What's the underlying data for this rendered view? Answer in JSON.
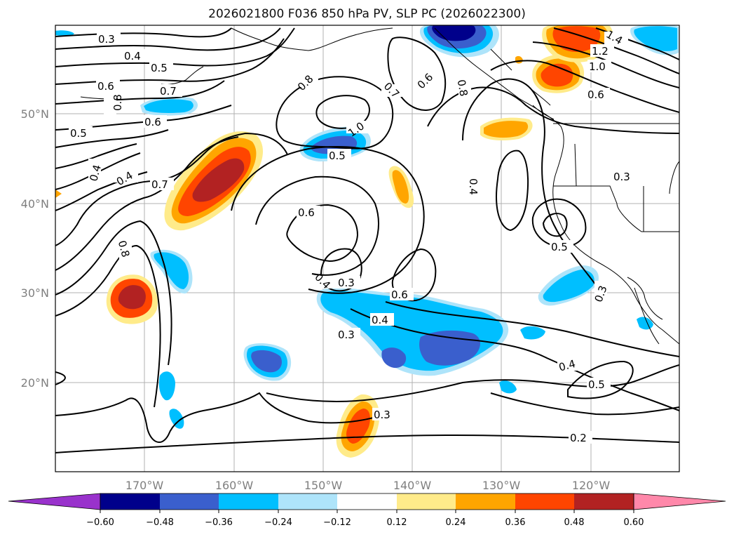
{
  "title": "2026021800 F036 850 hPa PV, SLP PC (2026022300)",
  "lon_ticks": [
    "170°W",
    "160°W",
    "150°W",
    "140°W",
    "130°W",
    "120°W"
  ],
  "lat_ticks": [
    "50°N",
    "40°N",
    "30°N",
    "20°N"
  ],
  "contour_labels": [
    "0.3",
    "0.4",
    "0.5",
    "0.6",
    "0.7",
    "0.8",
    "1.0",
    "1.2",
    "1.4",
    "0.2"
  ],
  "colorbar": {
    "ticks": [
      "−0.60",
      "−0.48",
      "−0.36",
      "−0.24",
      "−0.12",
      "0.12",
      "0.24",
      "0.36",
      "0.48",
      "0.60"
    ],
    "colors": {
      "under": "#9932CC",
      "neg060": "#00008B",
      "neg048": "#3A5FCD",
      "neg036": "#00BFFF",
      "neg024": "#AEE4FA",
      "zero": "#FFFFFF",
      "pos012": "#FFEB8A",
      "pos024": "#FFA500",
      "pos036": "#FF4500",
      "pos048": "#B22222",
      "over": "#FF88AA"
    }
  }
}
